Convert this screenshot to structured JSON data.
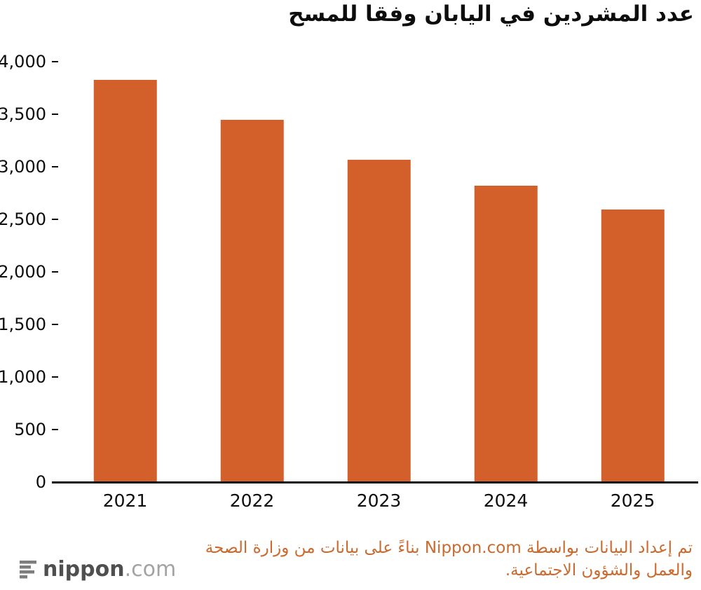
{
  "title": "عدد المشردين في اليابان وفقا للمسح",
  "chart_data": {
    "type": "bar",
    "categories": [
      "2021",
      "2022",
      "2023",
      "2024",
      "2025"
    ],
    "values": [
      3824,
      3448,
      3065,
      2820,
      2591
    ],
    "title": "عدد المشردين في اليابان وفقا للمسح",
    "xlabel": "",
    "ylabel": "",
    "ylim": [
      0,
      4000
    ],
    "yticks": [
      0,
      500,
      1000,
      1500,
      2000,
      2500,
      3000,
      3500,
      4000
    ],
    "bar_color": "#d35f2b",
    "grid": false,
    "legend_position": "none"
  },
  "footer": {
    "line1": "تم إعداد البيانات بواسطة Nippon.com بناءً على بيانات من وزارة الصحة",
    "line2": "والعمل والشؤون الاجتماعية."
  },
  "logo": {
    "name": "nippon",
    "tld": ".com",
    "icon": "signal-bars-icon"
  },
  "colors": {
    "bar": "#d35f2b",
    "axis": "#0d0d0d",
    "footer_text": "#ca6a2e",
    "logo_dark": "#4f4f4f",
    "logo_light": "#a3a3a3"
  }
}
